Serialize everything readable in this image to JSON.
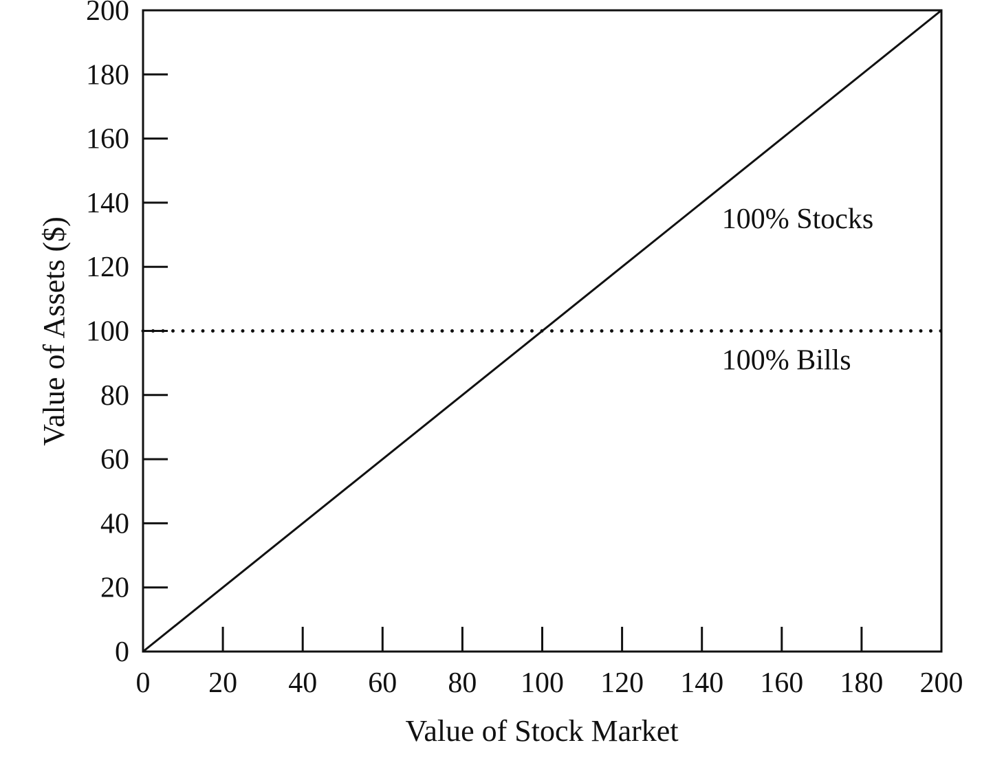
{
  "chart_data": {
    "type": "line",
    "title": "",
    "xlabel": "Value of Stock Market",
    "ylabel": "Value of Assets ($)",
    "xlim": [
      0,
      200
    ],
    "ylim": [
      0,
      200
    ],
    "x_ticks": [
      "0",
      "20",
      "40",
      "60",
      "80",
      "100",
      "120",
      "140",
      "160",
      "180",
      "200"
    ],
    "y_ticks": [
      "0",
      "20",
      "40",
      "60",
      "80",
      "100",
      "120",
      "140",
      "160",
      "180",
      "200"
    ],
    "grid": false,
    "legend": "none",
    "series": [
      {
        "style": "solid",
        "color": "#111111",
        "x": [
          0,
          200
        ],
        "y": [
          0,
          200
        ]
      },
      {
        "style": "dotted",
        "color": "#111111",
        "x": [
          0,
          200
        ],
        "y": [
          100,
          100
        ]
      }
    ],
    "annotations": [
      {
        "text": "100% Stocks",
        "x": 145,
        "y": 135
      },
      {
        "text": "100% Bills",
        "x": 145,
        "y": 91
      }
    ]
  }
}
